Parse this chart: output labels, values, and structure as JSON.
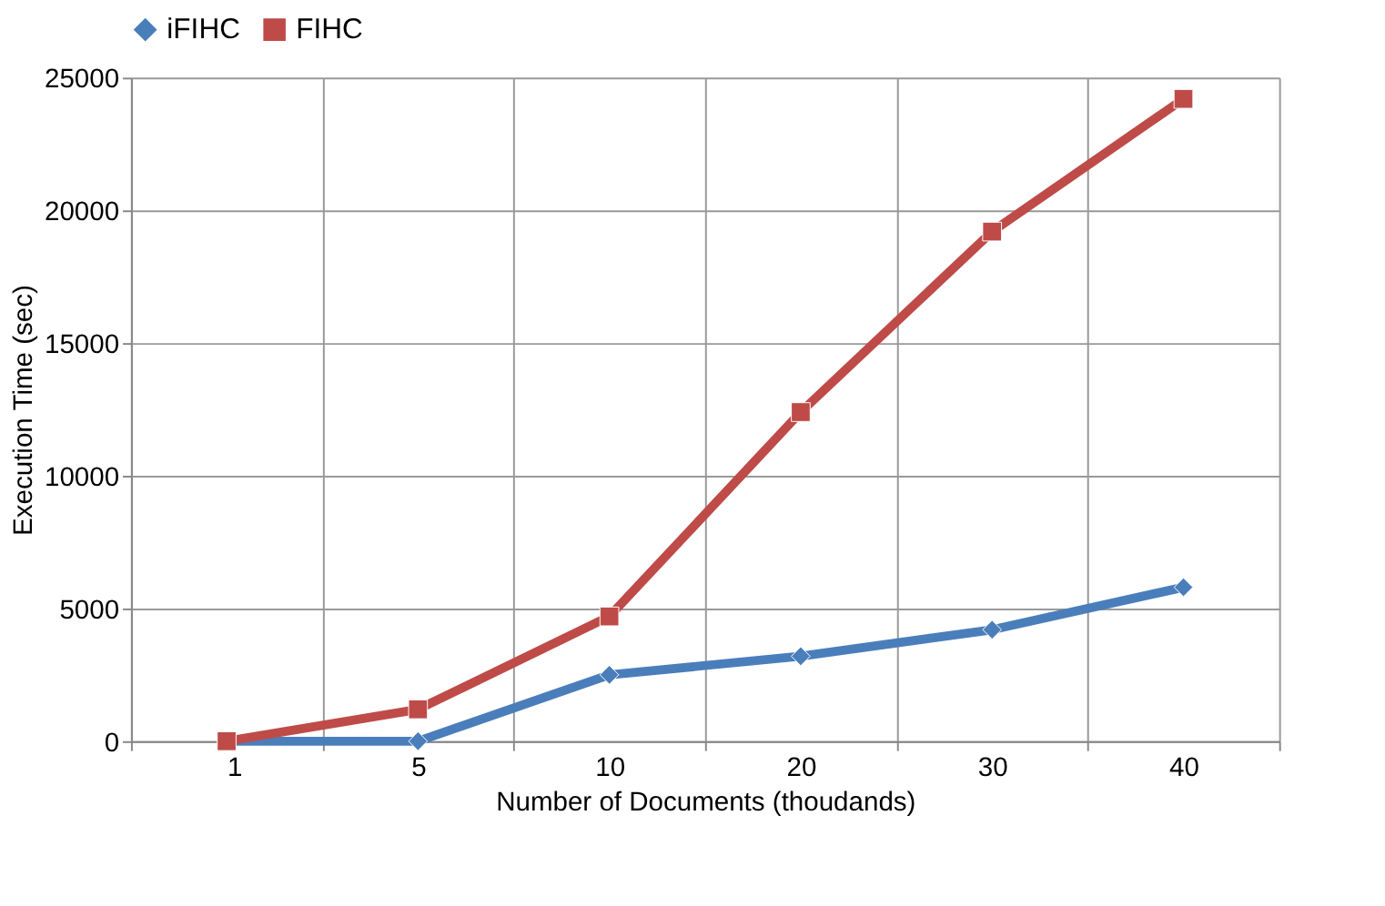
{
  "chart_data": {
    "type": "line",
    "xlabel": "Number of Documents (thoudands)",
    "ylabel": "Execution Time (sec)",
    "categories": [
      "1",
      "5",
      "10",
      "20",
      "30",
      "40"
    ],
    "series": [
      {
        "name": "iFIHC",
        "color": "#4a7ebb",
        "marker": "diamond",
        "values": [
          0,
          0,
          2500,
          3200,
          4200,
          5800
        ]
      },
      {
        "name": "FIHC",
        "color": "#be4b48",
        "marker": "square",
        "values": [
          0,
          1200,
          4700,
          12400,
          19200,
          24200
        ]
      }
    ],
    "ylim": [
      0,
      25000
    ],
    "yticks": [
      0,
      5000,
      10000,
      15000,
      20000,
      25000
    ],
    "grid": true,
    "legend": "top",
    "line_style": "solid"
  }
}
